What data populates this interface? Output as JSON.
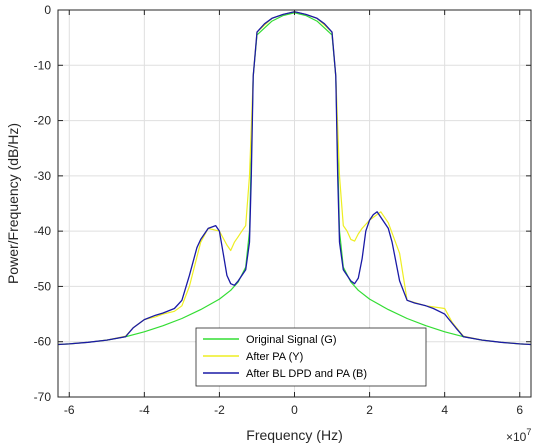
{
  "chart_data": {
    "type": "line",
    "title": "",
    "xlabel": "Frequency (Hz)",
    "ylabel": "Power/Frequency (dB/Hz)",
    "x_exponent_label": {
      "base": "×10",
      "exponent": "7"
    },
    "xlim": [
      -6.3,
      6.3
    ],
    "ylim": [
      -70,
      0
    ],
    "x_ticks": [
      -6,
      -4,
      -2,
      0,
      2,
      4,
      6
    ],
    "y_ticks": [
      0,
      -10,
      -20,
      -30,
      -40,
      -50,
      -60,
      -70
    ],
    "grid": true,
    "legend_position": "bottom-center",
    "series": [
      {
        "name": "Original Signal (G)",
        "color": "#33dd33",
        "x": [
          -6.3,
          -6.0,
          -5.5,
          -5.0,
          -4.5,
          -4.0,
          -3.5,
          -3.0,
          -2.5,
          -2.0,
          -1.7,
          -1.5,
          -1.3,
          -1.2,
          -1.1,
          -1.0,
          -0.6,
          -0.3,
          0,
          0.3,
          0.6,
          1.0,
          1.1,
          1.2,
          1.3,
          1.5,
          1.7,
          2.0,
          2.5,
          3.0,
          3.5,
          4.0,
          4.5,
          5.0,
          5.5,
          6.0,
          6.3
        ],
        "y": [
          -60.5,
          -60.4,
          -60.1,
          -59.7,
          -59.1,
          -58.2,
          -57.1,
          -55.8,
          -54.2,
          -52.3,
          -50.7,
          -49.2,
          -46.5,
          -40.0,
          -12.0,
          -4.5,
          -2.0,
          -1.0,
          -0.5,
          -1.0,
          -2.0,
          -4.5,
          -12.0,
          -40.0,
          -46.5,
          -49.2,
          -50.7,
          -52.3,
          -54.2,
          -55.8,
          -57.1,
          -58.2,
          -59.1,
          -59.7,
          -60.1,
          -60.4,
          -60.5
        ]
      },
      {
        "name": "After PA (Y)",
        "color": "#eeee22",
        "x": [
          -6.3,
          -6.0,
          -5.5,
          -5.0,
          -4.5,
          -4.3,
          -4.0,
          -3.7,
          -3.5,
          -3.2,
          -3.0,
          -2.8,
          -2.5,
          -2.3,
          -2.0,
          -1.8,
          -1.7,
          -1.6,
          -1.5,
          -1.4,
          -1.3,
          -1.2,
          -1.1,
          -1.0,
          -0.6,
          -0.3,
          0,
          0.3,
          0.6,
          1.0,
          1.1,
          1.2,
          1.3,
          1.4,
          1.5,
          1.6,
          1.7,
          1.8,
          2.0,
          2.3,
          2.5,
          2.8,
          3.0,
          3.5,
          4.0,
          4.2,
          4.5,
          5.0,
          5.5,
          6.0,
          6.3
        ],
        "y": [
          -60.5,
          -60.4,
          -60.1,
          -59.7,
          -59.0,
          -57.5,
          -56.0,
          -55.5,
          -55.0,
          -54.5,
          -53.5,
          -50.0,
          -42.0,
          -39.5,
          -40.0,
          -42.5,
          -43.5,
          -42.0,
          -41.0,
          -40.0,
          -39.0,
          -30.0,
          -12.0,
          -4.0,
          -1.5,
          -0.8,
          -0.3,
          -0.8,
          -1.5,
          -4.0,
          -12.0,
          -30.0,
          -39.0,
          -40.0,
          -41.5,
          -41.8,
          -40.5,
          -39.5,
          -38.0,
          -36.5,
          -38.5,
          -44.0,
          -52.5,
          -53.5,
          -54.0,
          -56.5,
          -59.0,
          -59.7,
          -60.1,
          -60.4,
          -60.5
        ]
      },
      {
        "name": "After BL DPD and PA (B)",
        "color": "#1a1aa6",
        "x": [
          -6.3,
          -6.0,
          -5.5,
          -5.0,
          -4.5,
          -4.3,
          -4.0,
          -3.7,
          -3.5,
          -3.2,
          -3.0,
          -2.8,
          -2.6,
          -2.5,
          -2.3,
          -2.1,
          -2.0,
          -1.9,
          -1.8,
          -1.7,
          -1.6,
          -1.5,
          -1.3,
          -1.2,
          -1.15,
          -1.1,
          -1.0,
          -0.8,
          -0.6,
          -0.3,
          0,
          0.3,
          0.6,
          0.8,
          1.0,
          1.1,
          1.15,
          1.2,
          1.3,
          1.5,
          1.6,
          1.7,
          1.8,
          1.9,
          2.0,
          2.1,
          2.2,
          2.3,
          2.5,
          2.6,
          2.8,
          3.0,
          3.2,
          3.5,
          3.7,
          4.0,
          4.3,
          4.5,
          5.0,
          5.5,
          6.0,
          6.3
        ],
        "y": [
          -60.5,
          -60.4,
          -60.1,
          -59.7,
          -59.1,
          -57.5,
          -56.0,
          -55.2,
          -54.8,
          -54.0,
          -52.5,
          -48.0,
          -43.0,
          -41.5,
          -39.5,
          -39.0,
          -40.0,
          -44.0,
          -48.0,
          -49.5,
          -49.8,
          -49.0,
          -47.0,
          -42.0,
          -30.0,
          -12.0,
          -4.0,
          -2.5,
          -1.5,
          -0.8,
          -0.3,
          -0.8,
          -1.5,
          -2.5,
          -4.0,
          -12.0,
          -30.0,
          -42.0,
          -47.0,
          -49.0,
          -49.5,
          -48.5,
          -45.0,
          -40.0,
          -38.0,
          -37.0,
          -36.5,
          -37.5,
          -39.5,
          -42.0,
          -49.0,
          -52.5,
          -53.0,
          -53.5,
          -54.0,
          -55.0,
          -57.5,
          -59.1,
          -59.7,
          -60.1,
          -60.4,
          -60.5
        ]
      }
    ]
  }
}
